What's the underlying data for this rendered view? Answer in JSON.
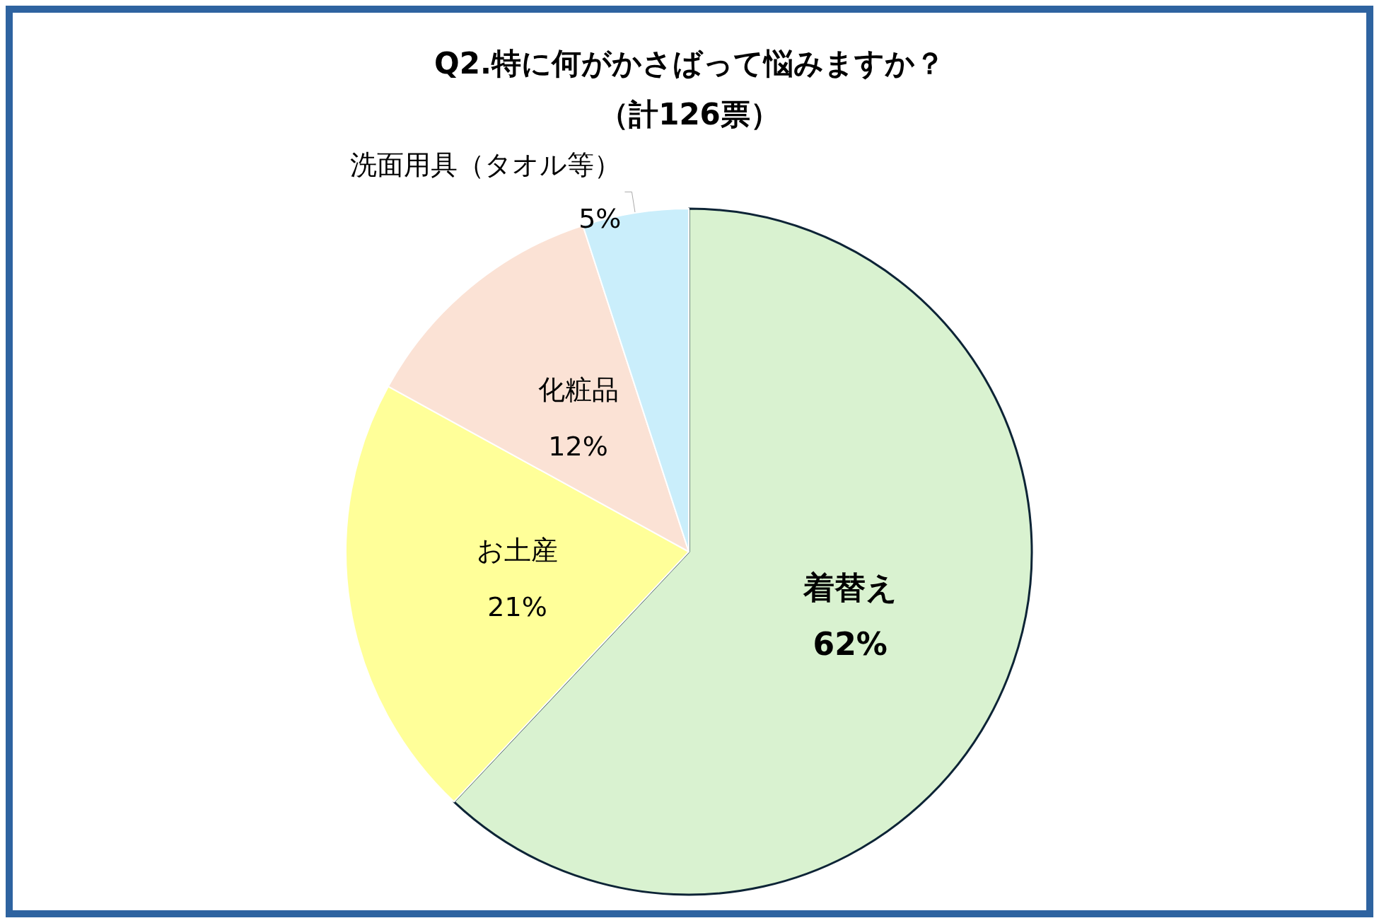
{
  "chart_data": {
    "type": "pie",
    "title": "Q2.特に何がかさばって悩みますか？",
    "subtitle": "（計126票）",
    "categories": [
      "着替え",
      "お土産",
      "化粧品",
      "洗面用具（タオル等）"
    ],
    "values": [
      62,
      21,
      12,
      5
    ],
    "value_labels": [
      "62%",
      "21%",
      "12%",
      "5%"
    ],
    "colors": [
      "#d9f2d0",
      "#ffff99",
      "#fbe2d5",
      "#caeefb"
    ],
    "legend": false
  }
}
